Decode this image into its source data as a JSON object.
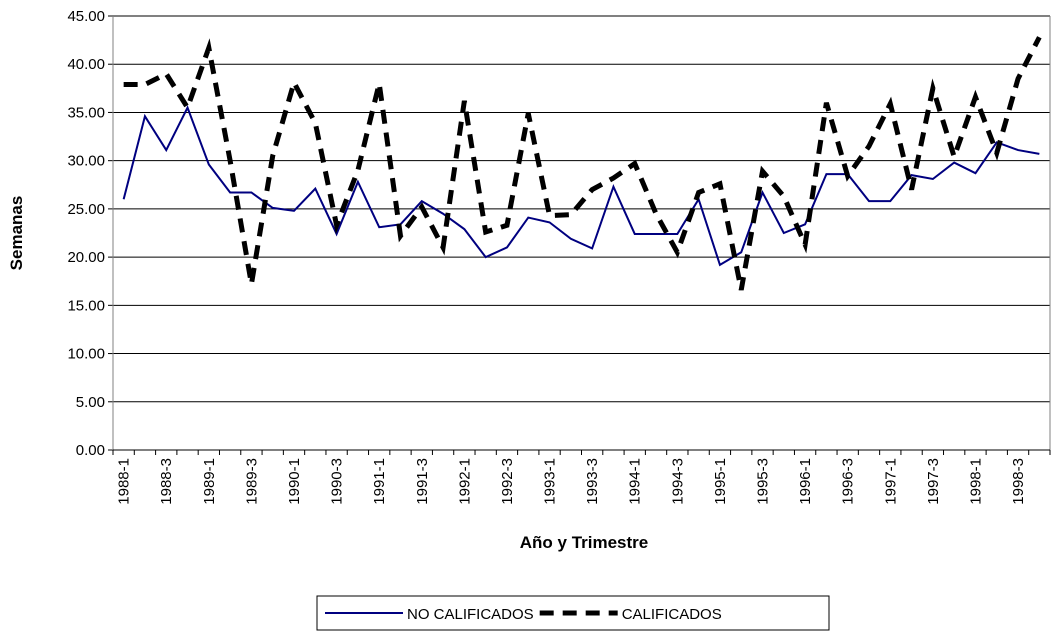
{
  "chart_data": {
    "type": "line",
    "y_label": "Semanas",
    "x_label": "Año y Trimestre",
    "categories": [
      "1988-1",
      null,
      "1988-3",
      null,
      "1989-1",
      null,
      "1989-3",
      null,
      "1990-1",
      null,
      "1990-3",
      null,
      "1991-1",
      null,
      "1991-3",
      null,
      "1992-1",
      null,
      "1992-3",
      null,
      "1993-1",
      null,
      "1993-3",
      null,
      "1994-1",
      null,
      "1994-3",
      null,
      "1995-1",
      null,
      "1995-3",
      null,
      "1996-1",
      null,
      "1996-3",
      null,
      "1997-1",
      null,
      "1997-3",
      null,
      "1998-1",
      null,
      "1998-3",
      null
    ],
    "series": [
      {
        "name": "NO CALIFICADOS",
        "color": "#000080",
        "dash": false,
        "values": [
          26.0,
          34.6,
          31.1,
          35.5,
          29.6,
          26.7,
          26.7,
          25.1,
          24.8,
          27.1,
          22.4,
          27.8,
          23.1,
          23.4,
          25.8,
          24.5,
          22.9,
          20.0,
          21.0,
          24.1,
          23.6,
          21.9,
          20.9,
          27.3,
          22.4,
          22.4,
          22.4,
          26.0,
          19.2,
          20.5,
          26.7,
          22.5,
          23.4,
          28.6,
          28.6,
          25.8,
          25.8,
          28.5,
          28.1,
          29.8,
          28.7,
          31.9,
          31.1,
          30.7
        ]
      },
      {
        "name": "CALIFICADOS",
        "color": "#000000",
        "dash": true,
        "values": [
          37.9,
          37.9,
          39.0,
          35.5,
          41.7,
          30.0,
          17.2,
          30.5,
          38.1,
          33.9,
          23.3,
          29.0,
          38.0,
          22.2,
          25.2,
          21.0,
          36.2,
          22.6,
          23.3,
          34.9,
          24.3,
          24.4,
          27.0,
          28.2,
          29.7,
          24.5,
          20.5,
          26.7,
          27.6,
          16.6,
          28.9,
          26.3,
          21.3,
          36.0,
          28.4,
          31.5,
          35.9,
          27.0,
          37.5,
          30.4,
          36.6,
          30.8,
          38.5,
          42.8
        ]
      }
    ],
    "ylim": [
      0,
      45
    ],
    "yticks": [
      {
        "value": 0,
        "label": "0.00"
      },
      {
        "value": 5,
        "label": "5.00"
      },
      {
        "value": 10,
        "label": "10.00"
      },
      {
        "value": 15,
        "label": "15.00"
      },
      {
        "value": 20,
        "label": "20.00"
      },
      {
        "value": 25,
        "label": "25.00"
      },
      {
        "value": 30,
        "label": "30.00"
      },
      {
        "value": 35,
        "label": "35.00"
      },
      {
        "value": 40,
        "label": "40.00"
      },
      {
        "value": 45,
        "label": "45.00"
      }
    ],
    "grid": true,
    "legend": "bottom"
  }
}
